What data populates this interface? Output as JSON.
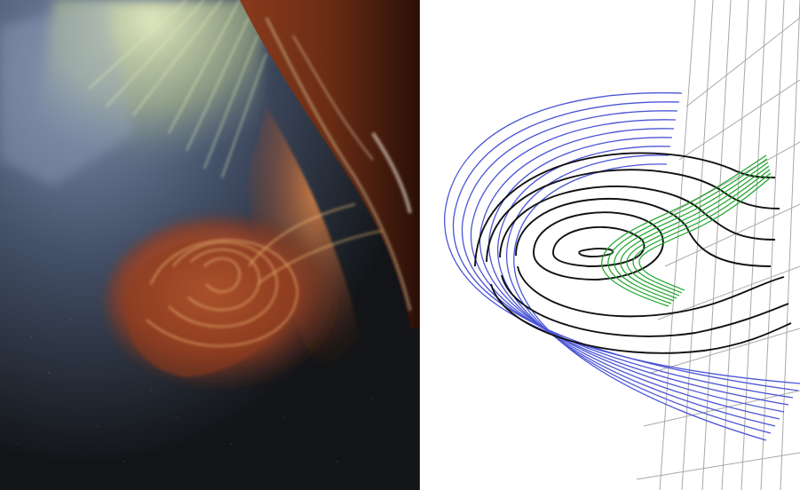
{
  "figure": {
    "left_panel": {
      "kind": "solar-eruption-image",
      "colors": {
        "background_dark": "#121417",
        "corona_pale": "#c9d6a4",
        "limb_orange": "#b4582a",
        "plasma_red": "#a44a28",
        "loop_highlight": "#f0c27a",
        "sky_blue": "#5a6c86"
      }
    },
    "right_panel": {
      "kind": "magnetic-field-line-model",
      "colors": {
        "outer_field_lines": "#4b55d6",
        "core_field_lines": "#111111",
        "flux_rope_lines": "#1ea32a",
        "surface_grid": "#a8a8a8"
      }
    }
  }
}
